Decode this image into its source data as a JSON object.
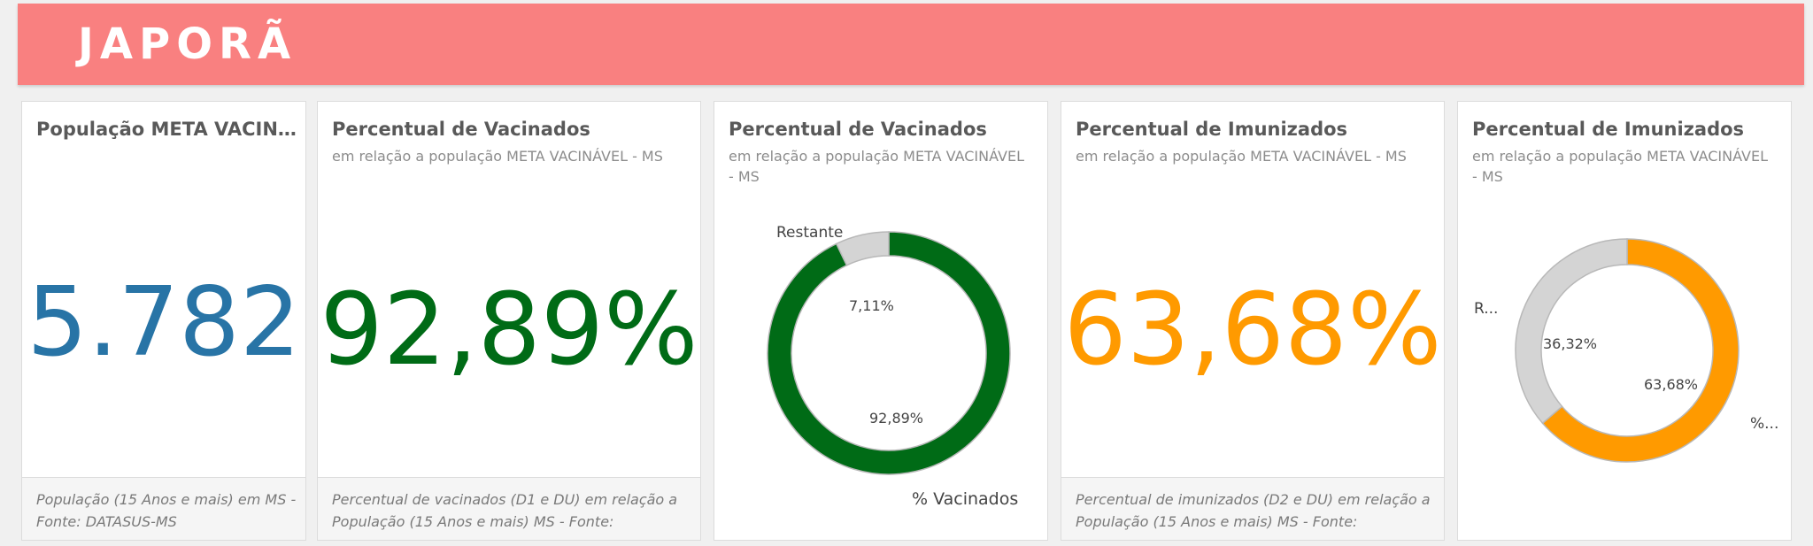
{
  "header": {
    "title": "JAPORÃ"
  },
  "colors": {
    "banner": "#f98080",
    "blue": "#2874a6",
    "green": "#006b16",
    "orange": "#ff9a00",
    "gray": "#d4d4d4"
  },
  "cards": [
    {
      "title": "População META VACINÁVEL - MS",
      "value": "5.782",
      "footer": "População (15 Anos e mais) em MS - Fonte: DATASUS-MS"
    },
    {
      "title": "Percentual de Vacinados",
      "subtitle": "em relação a população META VACINÁVEL - MS",
      "value": "92,89%",
      "footer": "Percentual de vacinados (D1 e DU) em relação a População (15 Anos e mais) MS - Fonte:"
    },
    {
      "title": "Percentual de Vacinados",
      "subtitle": "em relação a população META VACINÁVEL - MS"
    },
    {
      "title": "Percentual de Imunizados",
      "subtitle": "em relação a população META VACINÁVEL - MS",
      "value": "63,68%",
      "footer": "Percentual de imunizados (D2 e DU) em relação a População (15 Anos e mais) MS - Fonte:"
    },
    {
      "title": "Percentual de Imunizados",
      "subtitle": "em relação a população META VACINÁVEL - MS"
    }
  ],
  "chart_data": [
    {
      "type": "pie",
      "title": "Percentual de Vacinados",
      "subtitle": "em relação a população META VACINÁVEL - MS",
      "donut": true,
      "categories": [
        "% Vacinados",
        "Restante"
      ],
      "values": [
        92.89,
        7.11
      ],
      "value_labels": [
        "92,89%",
        "7,11%"
      ],
      "category_labels": [
        "% Vacinados",
        "Restante"
      ],
      "colors": [
        "#006b16",
        "#d4d4d4"
      ]
    },
    {
      "type": "pie",
      "title": "Percentual de Imunizados",
      "subtitle": "em relação a população META VACINÁVEL - MS",
      "donut": true,
      "categories": [
        "%...",
        "R..."
      ],
      "values": [
        63.68,
        36.32
      ],
      "value_labels": [
        "63,68%",
        "36,32%"
      ],
      "category_labels": [
        "%...",
        "R..."
      ],
      "colors": [
        "#ff9a00",
        "#d4d4d4"
      ]
    }
  ]
}
